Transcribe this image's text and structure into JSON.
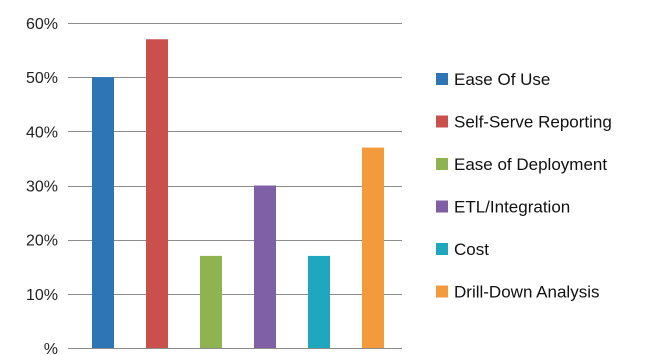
{
  "chart_data": {
    "type": "bar",
    "title": "",
    "xlabel": "",
    "ylabel": "",
    "ylim": [
      0,
      60
    ],
    "y_ticks": [
      "%",
      "10%",
      "20%",
      "30%",
      "40%",
      "50%",
      "60%"
    ],
    "grid": true,
    "legend_position": "right",
    "series": [
      {
        "name": "Ease Of Use",
        "value": 50,
        "color": "#2e75b6"
      },
      {
        "name": "Self-Serve Reporting",
        "value": 57,
        "color": "#c9504c"
      },
      {
        "name": "Ease of Deployment",
        "value": 17,
        "color": "#8fb350"
      },
      {
        "name": "ETL/Integration",
        "value": 30,
        "color": "#7f5fa5"
      },
      {
        "name": "Cost",
        "value": 17,
        "color": "#1fa7c0"
      },
      {
        "name": "Drill-Down Analysis",
        "value": 37,
        "color": "#f39a3c"
      }
    ]
  }
}
